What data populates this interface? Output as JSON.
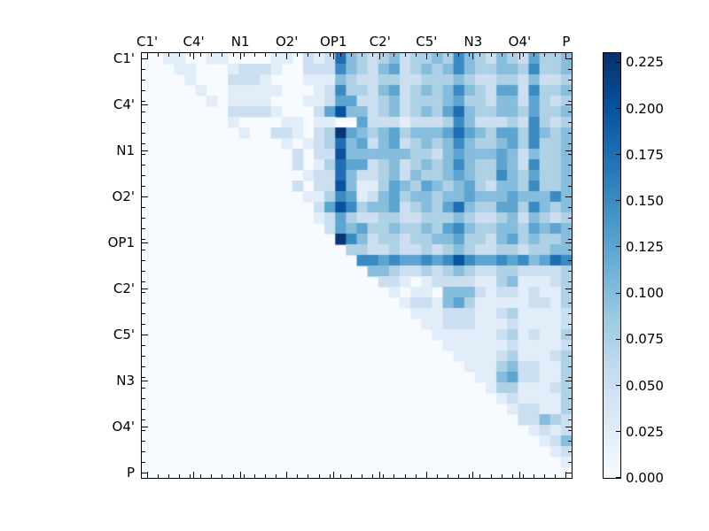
{
  "figure": {
    "background": "#ffffff"
  },
  "chart_data": {
    "type": "heatmap",
    "title": "",
    "xlabel": "",
    "ylabel": "",
    "axis_tick_labels": [
      "C1'",
      "C4'",
      "N1",
      "O2'",
      "OP1",
      "C2'",
      "C5'",
      "N3",
      "O4'",
      "P"
    ],
    "n_rows": 40,
    "n_cols": 40,
    "masked_region": "lower-triangle-white",
    "cell_value_scale": 0.025,
    "rows_digit_encoded": [
      "0011001100001102127432342334364324325334",
      "0001100012221002226432452343464334436334",
      "0000100022210001114322332233343223324223",
      "0000010011111000126332452343464325526334",
      "0000001011110001125522342333453324425323",
      "0000000022221000258442342343574334435334",
      "0000000010000110110052221222364222326323",
      "0000000001002210239543453444575435536434",
      "0000000000000101237452452343464334536334",
      "0000000000000020228444444332454445424334",
      "0000000000000020137552342343464335426334",
      "0000000000000001227422342433454336435334",
      "0000000000000020228411354354345324436334",
      "0000000000000001136512453443445444544464",
      "0000000000000000258634452343574335536434",
      "0000000000000000125322332233343223424323",
      "0000000000000000025453343343564334435454",
      "0000000000000000009642332334453324534334",
      "0000000000000000000332232232343223323344",
      "0000000000000000000066565565686556564576",
      "0000000000000000000004432232343223322223",
      "0000000000000000000000221012222113411123",
      "0000000000000000000000010110444212212113",
      "0000000000000000000000001221453111112213",
      "0000000000000000000000000111222112311112",
      "0000000000000000000000000011222111211112",
      "0000000000000000000000000001111112312113",
      "0000000000000000000000000000111111211112",
      "0000000000000000000000000000011112311123",
      "0000000000000000000000000000001113422113",
      "0000000000000000000000000000000114522113",
      "0000000000000000000000000000000013311123",
      "0000000000000000000000000000000001211113",
      "0000000000000000000000000000000000122113",
      "0000000000000000000000000000000000022432",
      "0000000000000000000000000000000000001212",
      "0000000000000000000000000000000000000124",
      "0000000000000000000000000000000000000012",
      "0000000000000000000000000000000000000001",
      "0000000000000000000000000000000000000000"
    ],
    "vmin": 0.0,
    "vmax": 0.23,
    "colormap": {
      "name": "Blues",
      "stops": [
        "#f7fbff",
        "#deebf7",
        "#c6dbef",
        "#9ecae1",
        "#6baed6",
        "#4292c6",
        "#2171b5",
        "#08519c",
        "#08306b"
      ]
    },
    "colorbar": {
      "tick_values": [
        0.0,
        0.025,
        0.05,
        0.075,
        0.1,
        0.125,
        0.15,
        0.175,
        0.2,
        0.225
      ],
      "tick_label_decimals": 3,
      "vmin": 0.0,
      "vmax": 0.23,
      "position": "right"
    },
    "grid": false,
    "legend": false
  }
}
